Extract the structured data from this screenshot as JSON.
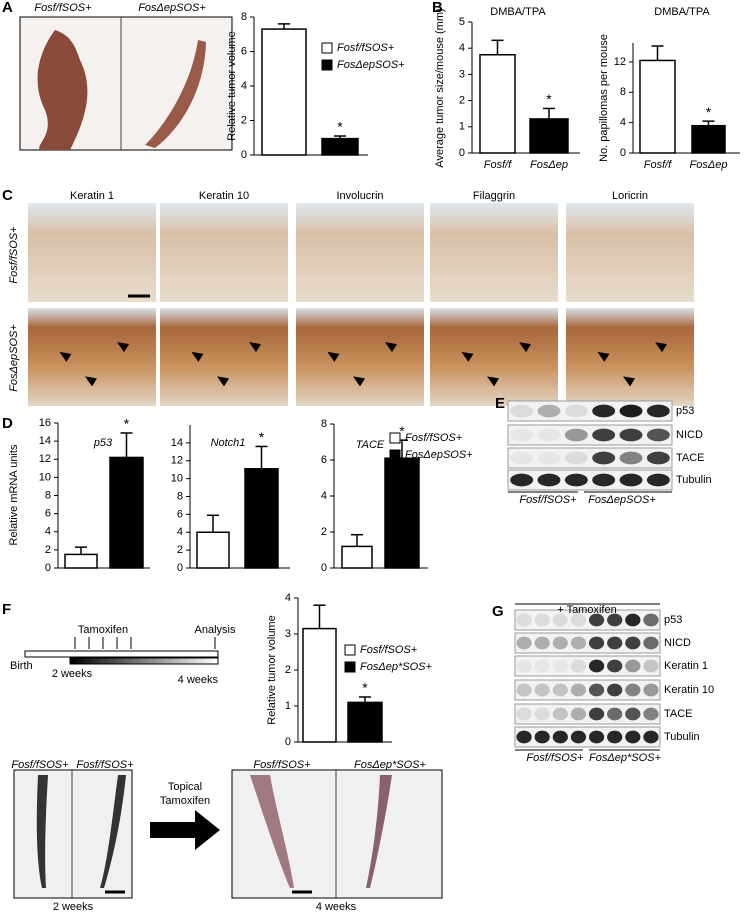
{
  "panel_letters": [
    "A",
    "B",
    "C",
    "D",
    "E",
    "F",
    "G"
  ],
  "panel_a_images": [
    "Fosf/fSOS+",
    "FosΔepSOS+"
  ],
  "panel_c": {
    "columns": [
      "Keratin 1",
      "Keratin 10",
      "Involucrin",
      "Filaggrin",
      "Loricrin"
    ],
    "rows": [
      "Fosf/fSOS+",
      "FosΔepSOS+"
    ]
  },
  "panel_e": {
    "bands": [
      "p53",
      "NICD",
      "TACE",
      "Tubulin"
    ],
    "groups": [
      "Fosf/fSOS+",
      "FosΔepSOS+"
    ]
  },
  "panel_f": {
    "timeline": {
      "tamoxifen": "Tamoxifen",
      "analysis": "Analysis",
      "birth": "Birth",
      "start": "2 weeks",
      "end": "4 weeks"
    },
    "photos_before": [
      "Fosf/fSOS+",
      "Fosf/fSOS+"
    ],
    "photos_after": [
      "Fosf/fSOS+",
      "FosΔep*SOS+"
    ],
    "arrow": [
      "Topical",
      "Tamoxifen"
    ],
    "before": "2 weeks",
    "after": "4 weeks"
  },
  "panel_g": {
    "header": "+ Tamoxifen",
    "bands": [
      "p53",
      "NICD",
      "Keratin 1",
      "Keratin 10",
      "TACE",
      "Tubulin"
    ],
    "groups": [
      "Fosf/fSOS+",
      "FosΔep*SOS+"
    ]
  },
  "chart_data": [
    {
      "type": "bar",
      "ylabel": "Relative tumor volume",
      "categories": [
        null,
        null
      ],
      "values": [
        7.3,
        0.95
      ],
      "errors": [
        0.3,
        0.15
      ],
      "colors": [
        "#ffffff",
        "#000000"
      ],
      "significance": [
        null,
        "*"
      ],
      "legend": [
        "Fosf/fSOS+",
        "FosΔepSOS+"
      ],
      "ylim": [
        0,
        8
      ],
      "yticks": [
        0,
        2,
        4,
        6,
        8
      ]
    },
    {
      "type": "bar",
      "title": "DMBA/TPA",
      "ylabel": "Average tumor size/mouse (mm)",
      "categories": [
        "Fosf/f",
        "FosΔep"
      ],
      "values": [
        3.75,
        1.3
      ],
      "errors": [
        0.55,
        0.4
      ],
      "colors": [
        "#ffffff",
        "#000000"
      ],
      "significance": [
        null,
        "*"
      ],
      "ylim": [
        0,
        5
      ],
      "yticks": [
        0,
        1,
        2,
        3,
        4,
        5
      ]
    },
    {
      "type": "bar",
      "title": "DMBA/TPA",
      "ylabel": "No. papillomas per mouse",
      "categories": [
        "Fosf/f",
        "FosΔep"
      ],
      "values": [
        12.2,
        3.6
      ],
      "errors": [
        1.9,
        0.6
      ],
      "colors": [
        "#ffffff",
        "#000000"
      ],
      "significance": [
        null,
        "*"
      ],
      "ylim": [
        0,
        14.5
      ],
      "yticks": [
        0,
        4,
        8,
        12
      ]
    },
    {
      "type": "bar",
      "title": "p53",
      "ylabel": "Relative mRNA units",
      "categories": [
        null,
        null
      ],
      "values": [
        1.5,
        12.2
      ],
      "errors": [
        0.8,
        2.7
      ],
      "colors": [
        "#ffffff",
        "#000000"
      ],
      "significance": [
        null,
        "*"
      ],
      "ylim": [
        0,
        16
      ],
      "yticks": [
        0,
        2,
        4,
        6,
        8,
        10,
        12,
        14,
        16
      ]
    },
    {
      "type": "bar",
      "title": "Notch1",
      "categories": [
        null,
        null
      ],
      "values": [
        4,
        11.1
      ],
      "errors": [
        1.9,
        2.5
      ],
      "colors": [
        "#ffffff",
        "#000000"
      ],
      "significance": [
        null,
        "*"
      ],
      "ylim": [
        0,
        16
      ],
      "yticks": [
        0,
        2,
        4,
        6,
        8,
        10,
        12,
        14
      ]
    },
    {
      "type": "bar",
      "title": "TACE",
      "categories": [
        null,
        null
      ],
      "values": [
        1.2,
        6.1
      ],
      "errors": [
        0.65,
        1.0
      ],
      "colors": [
        "#ffffff",
        "#000000"
      ],
      "significance": [
        null,
        "*"
      ],
      "legend": [
        "Fosf/fSOS+",
        "FosΔepSOS+"
      ],
      "ylim": [
        0,
        8
      ],
      "yticks": [
        0,
        2,
        4,
        6,
        8
      ]
    },
    {
      "type": "bar",
      "ylabel": "Relative tumor volume",
      "categories": [
        null,
        null
      ],
      "values": [
        3.15,
        1.1
      ],
      "errors": [
        0.65,
        0.15
      ],
      "colors": [
        "#ffffff",
        "#000000"
      ],
      "significance": [
        null,
        "*"
      ],
      "legend": [
        "Fosf/fSOS+",
        "FosΔep*SOS+"
      ],
      "ylim": [
        0,
        4
      ],
      "yticks": [
        0,
        1,
        2,
        3,
        4
      ]
    }
  ]
}
